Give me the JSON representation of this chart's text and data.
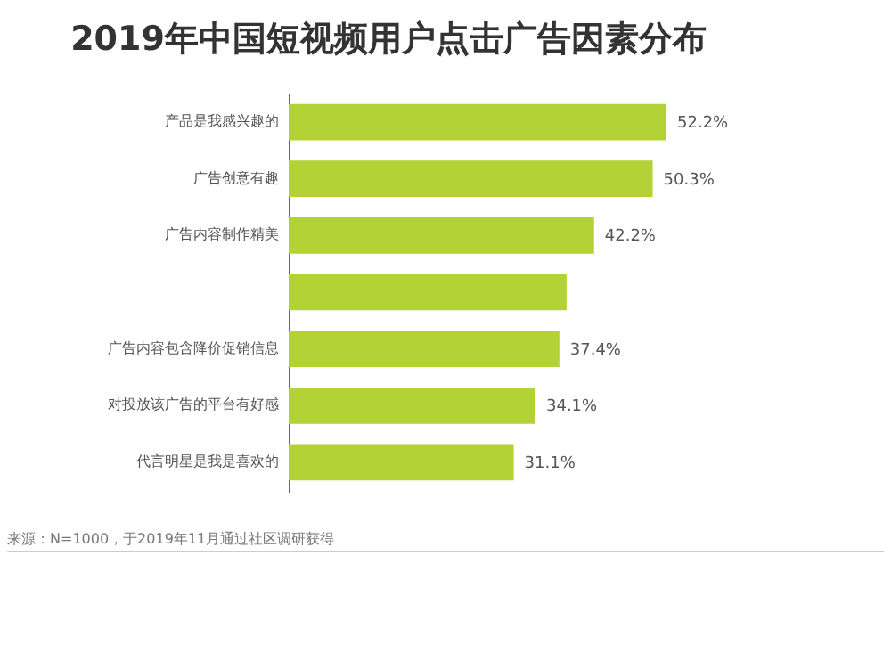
{
  "chart_data": {
    "type": "bar",
    "orientation": "horizontal",
    "title": "2019年中国短视频用户点击广告因素分布",
    "categories": [
      "产品是我感兴趣的",
      "广告创意有趣",
      "广告内容制作精美",
      null,
      "广告内容包含降价促销信息",
      "对投放该广告的平台有好感",
      "代言明星是我是喜欢的"
    ],
    "values": [
      52.2,
      50.3,
      42.2,
      38.4,
      37.4,
      34.1,
      31.1
    ],
    "value_labels": [
      "52.2%",
      "50.3%",
      "42.2%",
      null,
      "37.4%",
      "34.1%",
      "31.1%"
    ],
    "color": "#b3d235",
    "annotations": [
      "来源：N=1000，于2019年11月通过社区调研获得"
    ]
  }
}
